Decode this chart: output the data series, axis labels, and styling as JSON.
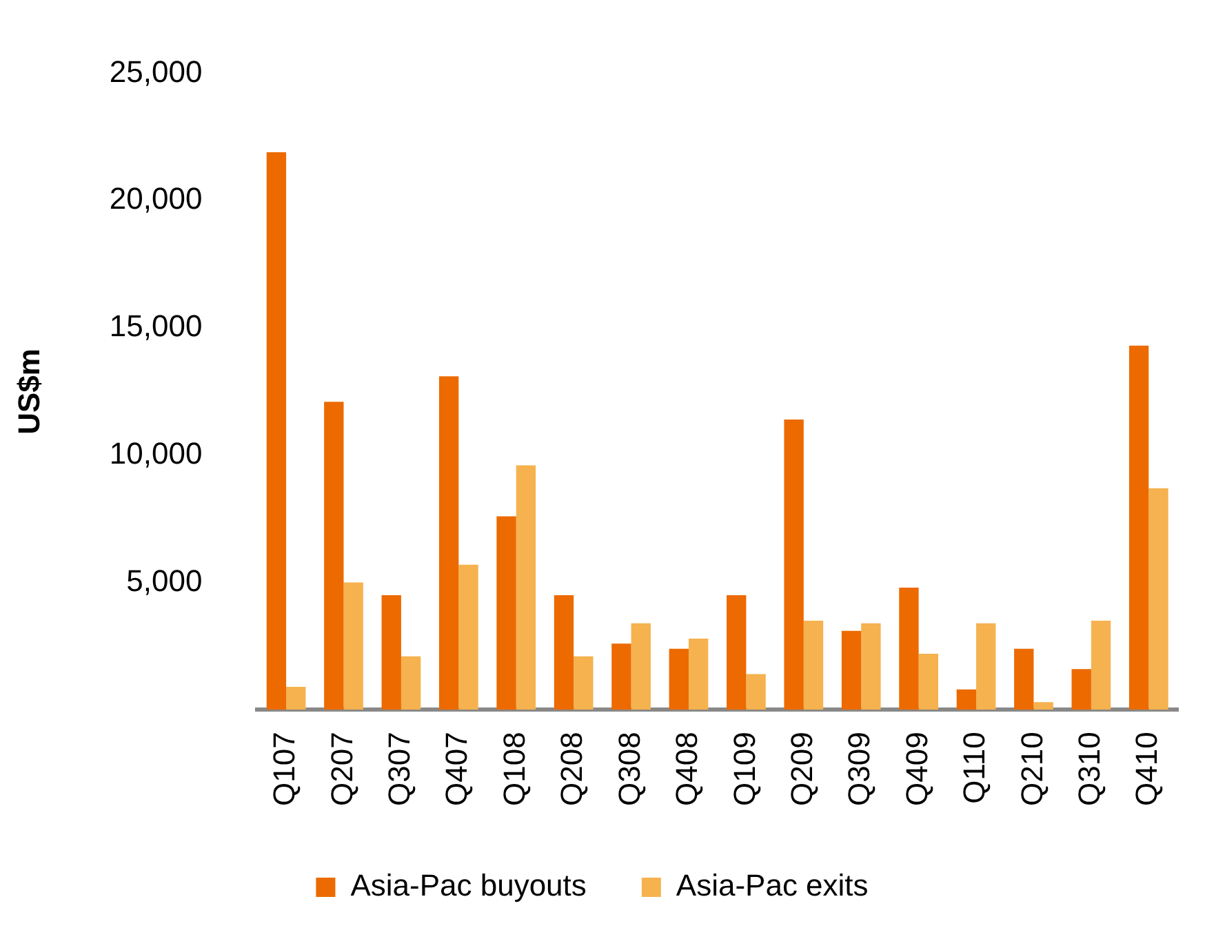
{
  "chart_data": {
    "type": "bar",
    "ylabel": "US$m",
    "categories": [
      "Q107",
      "Q207",
      "Q307",
      "Q407",
      "Q108",
      "Q208",
      "Q308",
      "Q408",
      "Q109",
      "Q209",
      "Q309",
      "Q409",
      "Q110",
      "Q210",
      "Q310",
      "Q410"
    ],
    "series": [
      {
        "name": "Asia-Pac buyouts",
        "color": "#ec6a00",
        "values": [
          21900,
          12100,
          4500,
          13100,
          7600,
          4500,
          2600,
          2400,
          4500,
          11400,
          3100,
          4800,
          800,
          2400,
          1600,
          14300
        ]
      },
      {
        "name": "Asia-Pac exits",
        "color": "#f5b24f",
        "values": [
          900,
          5000,
          2100,
          5700,
          9600,
          2100,
          3400,
          2800,
          1400,
          3500,
          3400,
          2200,
          3400,
          300,
          3500,
          8700
        ]
      }
    ],
    "ylim": [
      0,
      25000
    ],
    "yticks": [
      {
        "value": 5000,
        "label": "5,000"
      },
      {
        "value": 10000,
        "label": "10,000"
      },
      {
        "value": 15000,
        "label": "15,000"
      },
      {
        "value": 20000,
        "label": "20,000"
      },
      {
        "value": 25000,
        "label": "25,000"
      }
    ],
    "grid": false,
    "legend": "bottom"
  }
}
